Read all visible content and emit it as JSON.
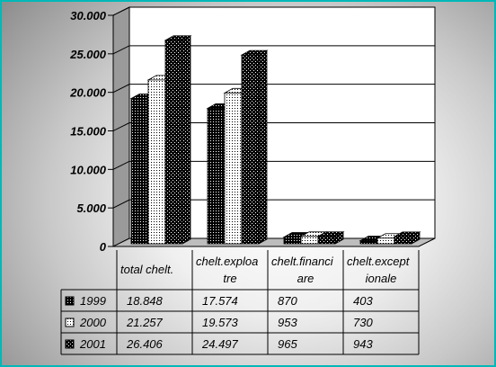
{
  "chart_data": {
    "type": "bar",
    "title": "",
    "xlabel": "",
    "ylabel": "",
    "categories": [
      "total chelt.",
      "chelt.exploatare",
      "chelt.financiare",
      "chelt.exceptionale"
    ],
    "category_lines": [
      [
        "total chelt."
      ],
      [
        "chelt.exploa",
        "tre"
      ],
      [
        "chelt.financi",
        "are"
      ],
      [
        "chelt.except",
        "ionale"
      ]
    ],
    "series": [
      {
        "name": "1999",
        "values": [
          18848,
          17574,
          870,
          403
        ],
        "labels": [
          "18.848",
          "17.574",
          "870",
          "403"
        ],
        "pattern": "dark-dotted"
      },
      {
        "name": "2000",
        "values": [
          21257,
          19573,
          953,
          730
        ],
        "labels": [
          "21.257",
          "19.573",
          "953",
          "730"
        ],
        "pattern": "light-dotted"
      },
      {
        "name": "2001",
        "values": [
          26406,
          24497,
          965,
          943
        ],
        "labels": [
          "26.406",
          "24.497",
          "965",
          "943"
        ],
        "pattern": "checkered"
      }
    ],
    "ylim": [
      0,
      30000
    ],
    "yticks": [
      0,
      5000,
      10000,
      15000,
      20000,
      25000,
      30000
    ],
    "ytick_labels": [
      "0",
      "5.000",
      "10.000",
      "15.000",
      "20.000",
      "25.000",
      "30.000"
    ],
    "grid": true,
    "view": "3d",
    "data_table": true,
    "legend": "data-table-left"
  }
}
